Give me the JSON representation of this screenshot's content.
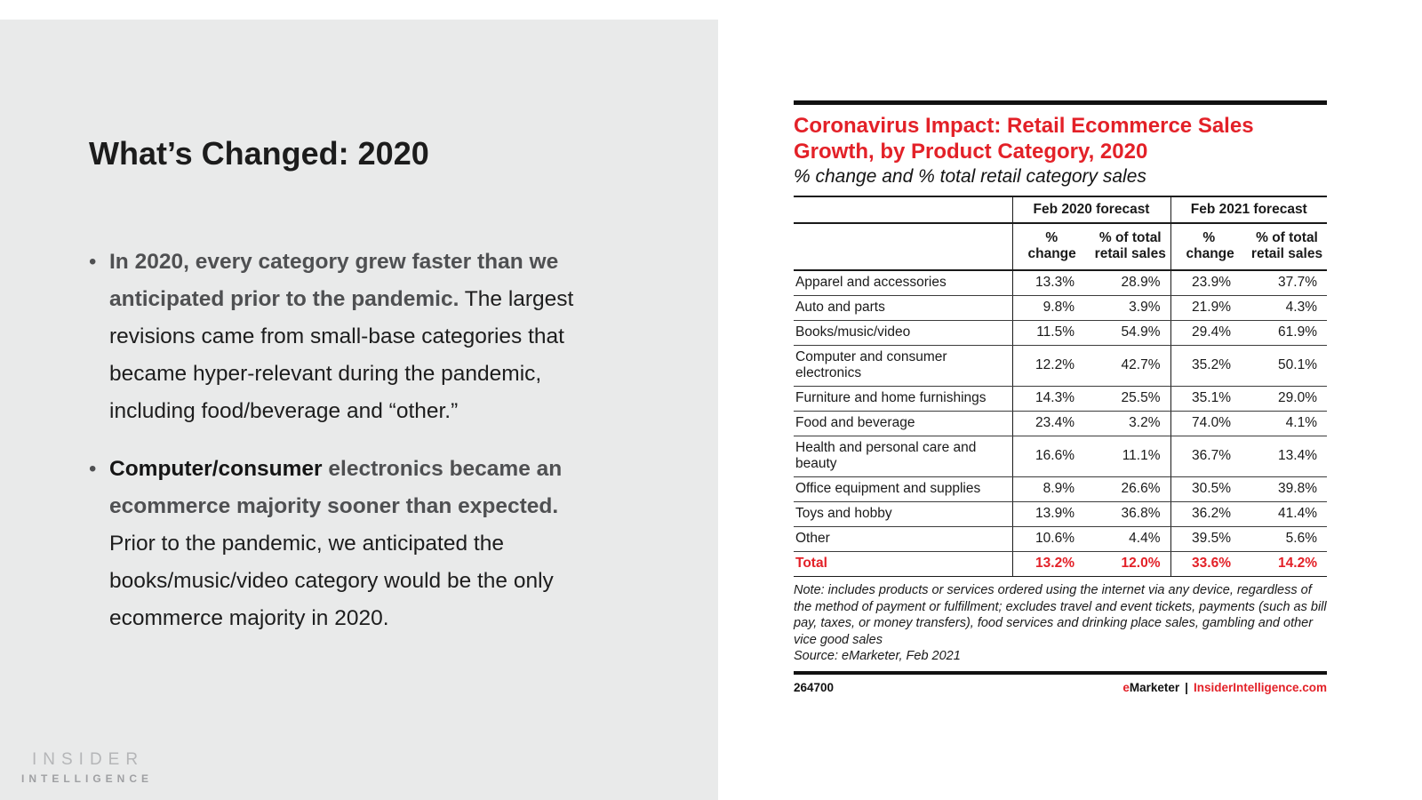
{
  "slide": {
    "title": "What’s Changed: 2020",
    "bullets": [
      {
        "bold_gray": "In 2020, every category grew faster than we anticipated prior to the pandemic.",
        "regular": "The largest revisions came from small-base categories that became hyper-relevant during the pandemic, including food/beverage and “other.”"
      },
      {
        "bold_black": "Computer/consumer",
        "bold_gray": "electronics became an ecommerce majority sooner than expected.",
        "regular": "Prior to the pandemic, we anticipated the books/music/video category would be the only ecommerce majority in 2020."
      }
    ],
    "logo": {
      "line1": "INSIDER",
      "line2": "INTELLIGENCE"
    }
  },
  "chart": {
    "title": "Coronavirus Impact: Retail Ecommerce Sales Growth, by Product Category, 2020",
    "subtitle": "% change and % total retail category sales",
    "note": "Note: includes products or services ordered using the internet via any device, regardless of the method of payment or fulfillment; excludes travel and event tickets, payments (such as bill pay, taxes, or money transfers), food services and drinking place sales, gambling and other vice good sales",
    "source": "Source: eMarketer, Feb 2021",
    "footer": {
      "id": "264700",
      "brand_e": "e",
      "brand_rest": "Marketer",
      "separator": "|",
      "site": "InsiderIntelligence.com"
    }
  },
  "chart_data": {
    "type": "table",
    "title": "Coronavirus Impact: Retail Ecommerce Sales Growth, by Product Category, 2020",
    "subtitle": "% change and % total retail category sales",
    "column_groups": [
      "Feb 2020 forecast",
      "Feb 2021 forecast"
    ],
    "columns": [
      "% change",
      "% of total retail sales",
      "% change",
      "% of total retail sales"
    ],
    "rows": [
      {
        "category": "Apparel and accessories",
        "values": [
          "13.3%",
          "28.9%",
          "23.9%",
          "37.7%"
        ]
      },
      {
        "category": "Auto and parts",
        "values": [
          "9.8%",
          "3.9%",
          "21.9%",
          "4.3%"
        ]
      },
      {
        "category": "Books/music/video",
        "values": [
          "11.5%",
          "54.9%",
          "29.4%",
          "61.9%"
        ]
      },
      {
        "category": "Computer and consumer electronics",
        "values": [
          "12.2%",
          "42.7%",
          "35.2%",
          "50.1%"
        ]
      },
      {
        "category": "Furniture and home furnishings",
        "values": [
          "14.3%",
          "25.5%",
          "35.1%",
          "29.0%"
        ]
      },
      {
        "category": "Food and beverage",
        "values": [
          "23.4%",
          "3.2%",
          "74.0%",
          "4.1%"
        ]
      },
      {
        "category": "Health and personal care and beauty",
        "values": [
          "16.6%",
          "11.1%",
          "36.7%",
          "13.4%"
        ]
      },
      {
        "category": "Office equipment and supplies",
        "values": [
          "8.9%",
          "26.6%",
          "30.5%",
          "39.8%"
        ]
      },
      {
        "category": "Toys and hobby",
        "values": [
          "13.9%",
          "36.8%",
          "36.2%",
          "41.4%"
        ]
      },
      {
        "category": "Other",
        "values": [
          "10.6%",
          "4.4%",
          "39.5%",
          "5.6%"
        ]
      },
      {
        "category": "Total",
        "values": [
          "13.2%",
          "12.0%",
          "33.6%",
          "14.2%"
        ],
        "is_total": true
      }
    ]
  },
  "colors": {
    "accent_red": "#e32128",
    "panel_gray": "#e9eaea",
    "text_gray": "#4f5052"
  }
}
